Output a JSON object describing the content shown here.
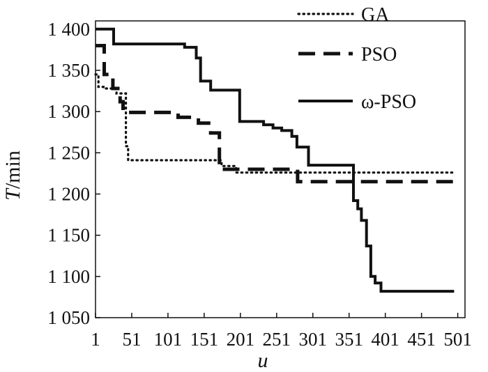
{
  "chart_data": {
    "type": "line",
    "xlabel": "u",
    "ylabel_italic": "T",
    "ylabel_rest": "/min",
    "xlim": [
      1,
      511
    ],
    "ylim": [
      1050,
      1410
    ],
    "xticks": [
      {
        "value": 1,
        "label": "1"
      },
      {
        "value": 51,
        "label": "51"
      },
      {
        "value": 101,
        "label": "101"
      },
      {
        "value": 151,
        "label": "151"
      },
      {
        "value": 201,
        "label": "201"
      },
      {
        "value": 251,
        "label": "251"
      },
      {
        "value": 301,
        "label": "301"
      },
      {
        "value": 351,
        "label": "351"
      },
      {
        "value": 401,
        "label": "401"
      },
      {
        "value": 451,
        "label": "451"
      },
      {
        "value": 501,
        "label": "501"
      }
    ],
    "yticks": [
      {
        "value": 1050,
        "label": "1 050"
      },
      {
        "value": 1100,
        "label": "1 100"
      },
      {
        "value": 1150,
        "label": "1 150"
      },
      {
        "value": 1200,
        "label": "1 200"
      },
      {
        "value": 1250,
        "label": "1 250"
      },
      {
        "value": 1300,
        "label": "1 300"
      },
      {
        "value": 1350,
        "label": "1 350"
      },
      {
        "value": 1400,
        "label": "1 400"
      }
    ],
    "legend_position": "top-right",
    "series": [
      {
        "name": "GA",
        "style": "dotted",
        "color": "#111111",
        "points": [
          [
            1,
            1345
          ],
          [
            5,
            1345
          ],
          [
            5,
            1330
          ],
          [
            12,
            1330
          ],
          [
            12,
            1328
          ],
          [
            30,
            1328
          ],
          [
            30,
            1322
          ],
          [
            43,
            1322
          ],
          [
            43,
            1258
          ],
          [
            46,
            1258
          ],
          [
            46,
            1241
          ],
          [
            175,
            1241
          ],
          [
            175,
            1234
          ],
          [
            195,
            1234
          ],
          [
            195,
            1226
          ],
          [
            496,
            1226
          ]
        ]
      },
      {
        "name": "PSO",
        "style": "dashed",
        "color": "#111111",
        "points": [
          [
            1,
            1380
          ],
          [
            13,
            1380
          ],
          [
            13,
            1345
          ],
          [
            25,
            1345
          ],
          [
            25,
            1328
          ],
          [
            35,
            1328
          ],
          [
            35,
            1312
          ],
          [
            39,
            1312
          ],
          [
            39,
            1299
          ],
          [
            115,
            1299
          ],
          [
            115,
            1293
          ],
          [
            143,
            1293
          ],
          [
            143,
            1286
          ],
          [
            160,
            1286
          ],
          [
            160,
            1274
          ],
          [
            172,
            1274
          ],
          [
            172,
            1230
          ],
          [
            280,
            1230
          ],
          [
            280,
            1215
          ],
          [
            496,
            1215
          ]
        ]
      },
      {
        "name": "ω-PSO",
        "style": "solid",
        "color": "#111111",
        "points": [
          [
            1,
            1400
          ],
          [
            26,
            1400
          ],
          [
            26,
            1382
          ],
          [
            124,
            1382
          ],
          [
            124,
            1378
          ],
          [
            140,
            1378
          ],
          [
            140,
            1365
          ],
          [
            146,
            1365
          ],
          [
            146,
            1337
          ],
          [
            160,
            1337
          ],
          [
            160,
            1326
          ],
          [
            200,
            1326
          ],
          [
            200,
            1288
          ],
          [
            233,
            1288
          ],
          [
            233,
            1284
          ],
          [
            246,
            1284
          ],
          [
            246,
            1280
          ],
          [
            258,
            1280
          ],
          [
            258,
            1277
          ],
          [
            272,
            1277
          ],
          [
            272,
            1270
          ],
          [
            279,
            1270
          ],
          [
            279,
            1257
          ],
          [
            295,
            1257
          ],
          [
            295,
            1235
          ],
          [
            357,
            1235
          ],
          [
            357,
            1192
          ],
          [
            363,
            1192
          ],
          [
            363,
            1182
          ],
          [
            368,
            1182
          ],
          [
            368,
            1168
          ],
          [
            375,
            1168
          ],
          [
            375,
            1137
          ],
          [
            381,
            1137
          ],
          [
            381,
            1100
          ],
          [
            387,
            1100
          ],
          [
            387,
            1092
          ],
          [
            395,
            1092
          ],
          [
            395,
            1082
          ],
          [
            496,
            1082
          ]
        ]
      }
    ]
  }
}
